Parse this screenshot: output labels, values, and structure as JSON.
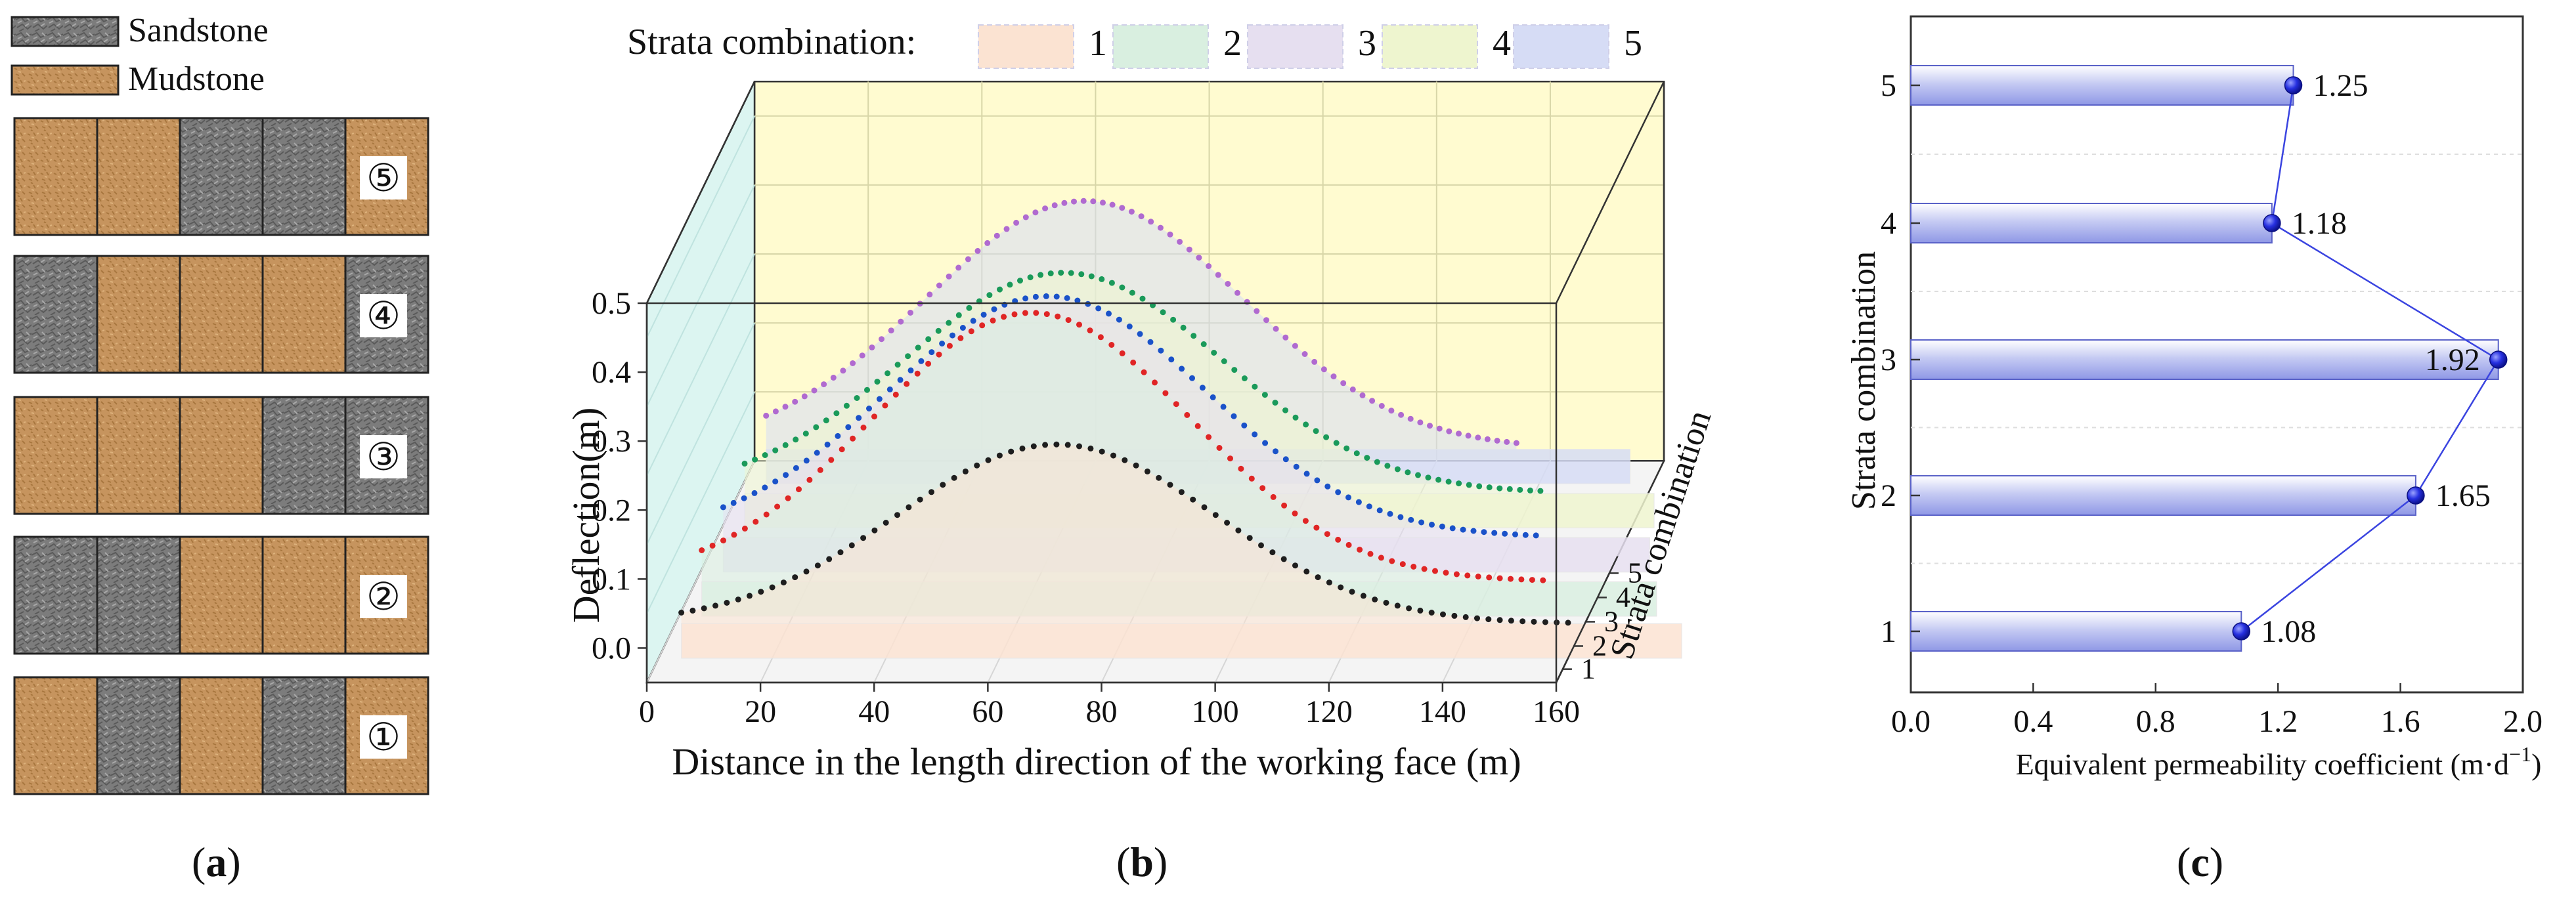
{
  "panel_labels": {
    "a": "a",
    "b": "b",
    "c": "c"
  },
  "colors": {
    "sandstone": "#7a7a7a",
    "mudstone": "#c4935c",
    "series": [
      "#1e1e1e",
      "#e02525",
      "#1a52c9",
      "#1a9a5a",
      "#b06ad0"
    ],
    "plane_fill": [
      "#fbe3d2",
      "#d9efe0",
      "#e6dff0",
      "#eef5cf",
      "#d6dcf5"
    ],
    "bar_fill": "#c9cdf5",
    "marker": "#2630e0"
  },
  "legend_a": {
    "sandstone": "Sandstone",
    "mudstone": "Mudstone"
  },
  "strata": [
    {
      "id": "5",
      "label": "⑤",
      "layers": [
        "M",
        "M",
        "S",
        "S",
        "M"
      ]
    },
    {
      "id": "4",
      "label": "④",
      "layers": [
        "S",
        "M",
        "M",
        "M",
        "S"
      ]
    },
    {
      "id": "3",
      "label": "③",
      "layers": [
        "M",
        "M",
        "M",
        "S",
        "S"
      ]
    },
    {
      "id": "2",
      "label": "②",
      "layers": [
        "S",
        "S",
        "M",
        "M",
        "M"
      ]
    },
    {
      "id": "1",
      "label": "①",
      "layers": [
        "M",
        "S",
        "M",
        "S",
        "M"
      ]
    }
  ],
  "chart_data": [
    {
      "type": "line",
      "title": "",
      "legend_title": "Strata combination:",
      "legend_entries": [
        "1",
        "2",
        "3",
        "4",
        "5"
      ],
      "xlabel": "Distance in the length direction of the working face (m)",
      "ylabel": "Deflection(m)",
      "zlabel": "Strata combination",
      "xlim": [
        0,
        160
      ],
      "ylim": [
        -0.05,
        0.5
      ],
      "xticks": [
        "0",
        "20",
        "40",
        "60",
        "80",
        "100",
        "120",
        "140",
        "160"
      ],
      "yticks": [
        "0.0",
        "0.1",
        "0.2",
        "0.3",
        "0.4",
        "0.5"
      ],
      "zticks": [
        "1",
        "2",
        "3",
        "4",
        "5"
      ],
      "series": [
        {
          "name": "1",
          "x_start": 4,
          "x_end": 160,
          "peak_x": 70,
          "peak": 0.26,
          "baseline": 0.0
        },
        {
          "name": "2",
          "x_start": 4,
          "x_end": 152,
          "peak_x": 62,
          "peak": 0.39,
          "baseline": 0.0
        },
        {
          "name": "3",
          "x_start": 4,
          "x_end": 147,
          "peak_x": 61,
          "peak": 0.35,
          "baseline": 0.0
        },
        {
          "name": "4",
          "x_start": 4,
          "x_end": 144,
          "peak_x": 60,
          "peak": 0.32,
          "baseline": 0.0
        },
        {
          "name": "5",
          "x_start": 4,
          "x_end": 136,
          "peak_x": 60,
          "peak": 0.36,
          "baseline": 0.0
        }
      ]
    },
    {
      "type": "bar",
      "orientation": "horizontal",
      "xlabel": "Equivalent permeability coefficient (m·d",
      "xlabel_exp": "−1",
      "xlabel_close": ")",
      "ylabel": "Strata combination",
      "xlim": [
        0,
        2.0
      ],
      "xticks": [
        "0.0",
        "0.4",
        "0.8",
        "1.2",
        "1.6",
        "2.0"
      ],
      "categories": [
        "1",
        "2",
        "3",
        "4",
        "5"
      ],
      "values": [
        1.08,
        1.65,
        1.92,
        1.18,
        1.25
      ],
      "value_labels": [
        "1.08",
        "1.65",
        "1.92",
        "1.18",
        "1.25"
      ]
    }
  ]
}
